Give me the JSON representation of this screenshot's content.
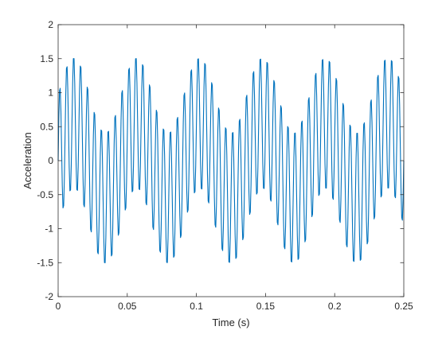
{
  "chart_data": {
    "type": "line",
    "title": "",
    "xlabel": "Time (s)",
    "ylabel": "Acceleration",
    "xlim": [
      0,
      0.25
    ],
    "ylim": [
      -2,
      2
    ],
    "x_ticks": [
      0,
      0.05,
      0.1,
      0.15,
      0.2,
      0.25
    ],
    "x_tick_labels": [
      "0",
      "0.05",
      "0.1",
      "0.15",
      "0.2",
      "0.25"
    ],
    "y_ticks": [
      -2,
      -1.5,
      -1,
      -0.5,
      0,
      0.5,
      1,
      1.5,
      2
    ],
    "y_tick_labels": [
      "-2",
      "-1.5",
      "-1",
      "-0.5",
      "0",
      "0.5",
      "1",
      "1.5",
      "2"
    ],
    "grid": false,
    "line_color": "#0072bd",
    "series": [
      {
        "sampling": "sum of two sinusoids, sampled every 0.0005 s from 0 to 0.25 s",
        "components": [
          {
            "frequency_hz": 200,
            "amplitude": 1.0
          },
          {
            "frequency_hz": 22,
            "amplitude": 0.55
          }
        ]
      }
    ]
  }
}
